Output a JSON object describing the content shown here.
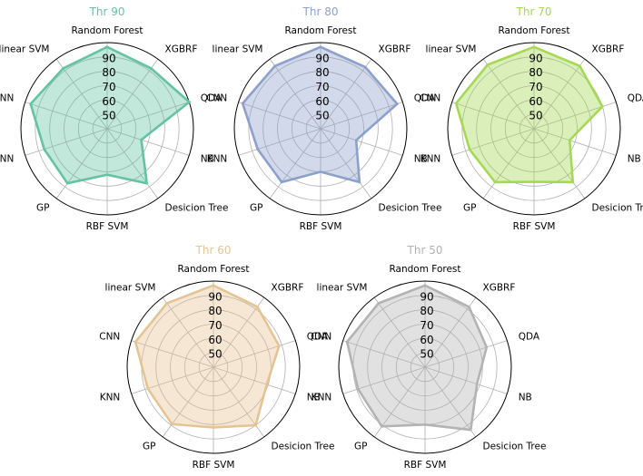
{
  "chart_data": [
    {
      "type": "radar",
      "title": "Thr 90",
      "color": "#66c2a5",
      "categories": [
        "Random Forest",
        "XGBRF",
        "QDA",
        "NB",
        "Desicion Tree",
        "RBF SVM",
        "GP",
        "KNN",
        "CNN",
        "linear SVM"
      ],
      "rticks": [
        "50",
        "60",
        "70",
        "80",
        "90"
      ],
      "rlim": [
        40,
        100
      ],
      "values": [
        97,
        92,
        100,
        65,
        87,
        72,
        87,
        86,
        96,
        92
      ]
    },
    {
      "type": "radar",
      "title": "Thr 80",
      "color": "#8da0cb",
      "categories": [
        "Random Forest",
        "XGBRF",
        "QDA",
        "NB",
        "Desicion Tree",
        "RBF SVM",
        "GP",
        "KNN",
        "CNN",
        "linear SVM"
      ],
      "rticks": [
        "50",
        "60",
        "70",
        "80",
        "90"
      ],
      "rlim": [
        40,
        100
      ],
      "values": [
        97,
        93,
        96,
        66,
        86,
        70,
        86,
        86,
        97,
        94
      ]
    },
    {
      "type": "radar",
      "title": "Thr 70",
      "color": "#a6d854",
      "categories": [
        "Random Forest",
        "XGBRF",
        "QDA",
        "NB",
        "Desicion Tree",
        "RBF SVM",
        "GP",
        "KNN",
        "CNN",
        "linear SVM"
      ],
      "rticks": [
        "50",
        "60",
        "70",
        "80",
        "90"
      ],
      "rlim": [
        40,
        100
      ],
      "values": [
        97,
        94,
        90,
        66,
        86,
        77,
        86,
        87,
        97,
        95
      ]
    },
    {
      "type": "radar",
      "title": "Thr 60",
      "color": "#e5c494",
      "categories": [
        "Random Forest",
        "XGBRF",
        "QDA",
        "NB",
        "Desicion Tree",
        "RBF SVM",
        "GP",
        "KNN",
        "CNN",
        "linear SVM"
      ],
      "rticks": [
        "50",
        "60",
        "70",
        "80",
        "90"
      ],
      "rlim": [
        40,
        100
      ],
      "values": [
        97,
        92,
        88,
        79,
        90,
        82,
        89,
        88,
        97,
        95
      ]
    },
    {
      "type": "radar",
      "title": "Thr 50",
      "color": "#b3b3b3",
      "categories": [
        "Random Forest",
        "XGBRF",
        "QDA",
        "NB",
        "Desicion Tree",
        "RBF SVM",
        "GP",
        "KNN",
        "CNN",
        "linear SVM"
      ],
      "rticks": [
        "50",
        "60",
        "70",
        "80",
        "90"
      ],
      "rlim": [
        40,
        100
      ],
      "values": [
        97,
        92,
        85,
        78,
        94,
        80,
        91,
        89,
        97,
        95
      ]
    }
  ]
}
